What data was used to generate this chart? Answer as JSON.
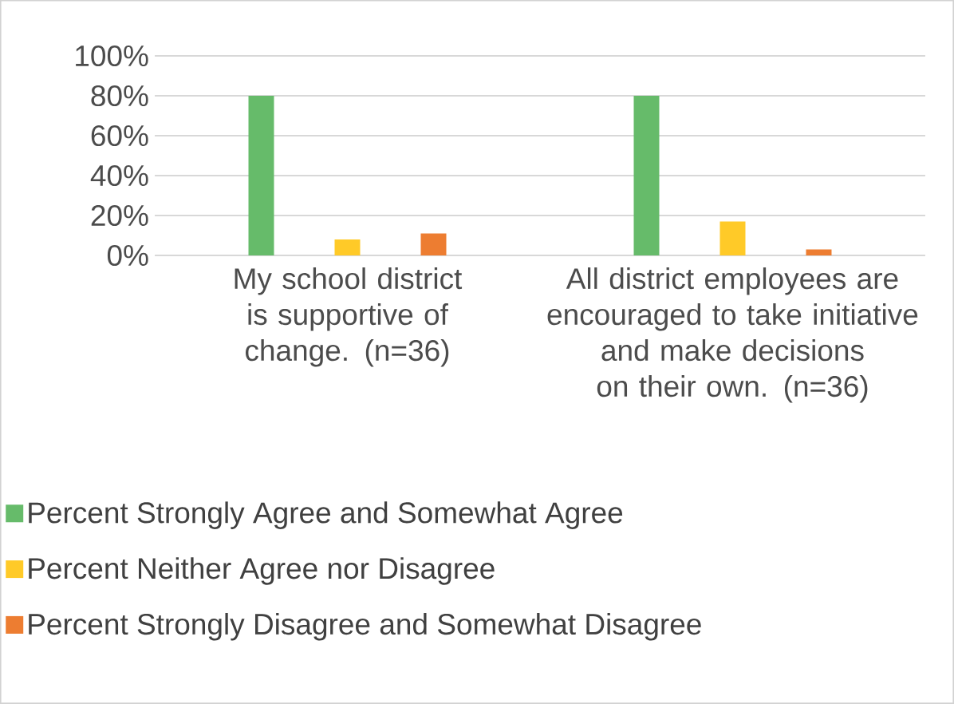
{
  "chart_data": {
    "type": "bar",
    "categories": [
      "My school district is supportive of change. (n=36)",
      "All district employees are encouraged to take initiative and make decisions on their own. (n=36)"
    ],
    "series": [
      {
        "name": "Percent Strongly Agree and Somewhat Agree",
        "color": "#66bb6a",
        "values": [
          80,
          80
        ]
      },
      {
        "name": "Percent Neither Agree nor Disagree",
        "color": "#ffca28",
        "values": [
          8,
          17
        ]
      },
      {
        "name": "Percent Strongly Disagree and Somewhat Disagree",
        "color": "#ed7d31",
        "values": [
          11,
          3
        ]
      }
    ],
    "ylim": [
      0,
      100
    ],
    "yticks": [
      {
        "value": 0,
        "label": "0%"
      },
      {
        "value": 20,
        "label": "20%"
      },
      {
        "value": 40,
        "label": "40%"
      },
      {
        "value": 60,
        "label": "60%"
      },
      {
        "value": 80,
        "label": "80%"
      },
      {
        "value": 100,
        "label": "100%"
      }
    ],
    "grid": "y",
    "legend": "bottom"
  }
}
